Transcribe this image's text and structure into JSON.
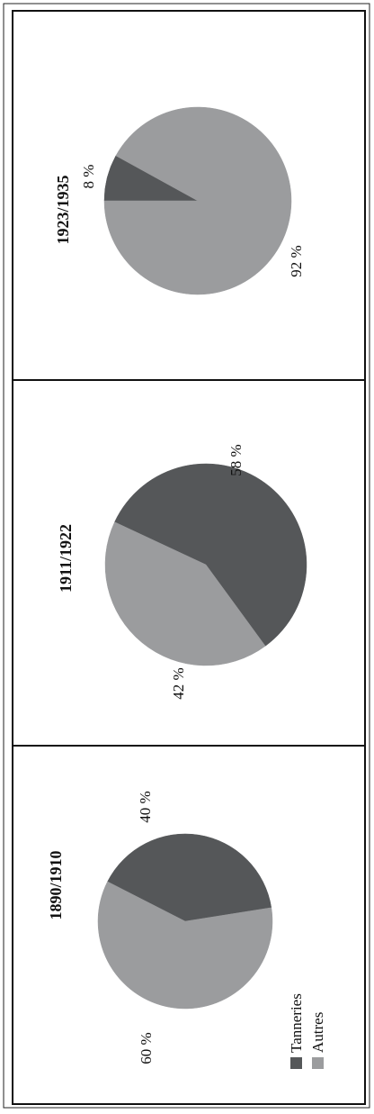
{
  "chart_data": [
    {
      "type": "pie",
      "title": "1890/1910",
      "categories": [
        "Tanneries",
        "Autres"
      ],
      "values": [
        40,
        60
      ],
      "labels": [
        "40 %",
        "60 %"
      ]
    },
    {
      "type": "pie",
      "title": "1911/1922",
      "categories": [
        "Tanneries",
        "Autres"
      ],
      "values": [
        58,
        42
      ],
      "labels": [
        "58 %",
        "42 %"
      ]
    },
    {
      "type": "pie",
      "title": "1923/1935",
      "categories": [
        "Tanneries",
        "Autres"
      ],
      "values": [
        8,
        92
      ],
      "labels": [
        "8 %",
        "92 %"
      ]
    }
  ],
  "legend": {
    "items": [
      {
        "label": "Tanneries",
        "color": "#555759"
      },
      {
        "label": "Autres",
        "color": "#9b9c9e"
      }
    ]
  },
  "colors": {
    "tanneries": "#555759",
    "autres": "#9b9c9e",
    "frame": "#111111"
  }
}
